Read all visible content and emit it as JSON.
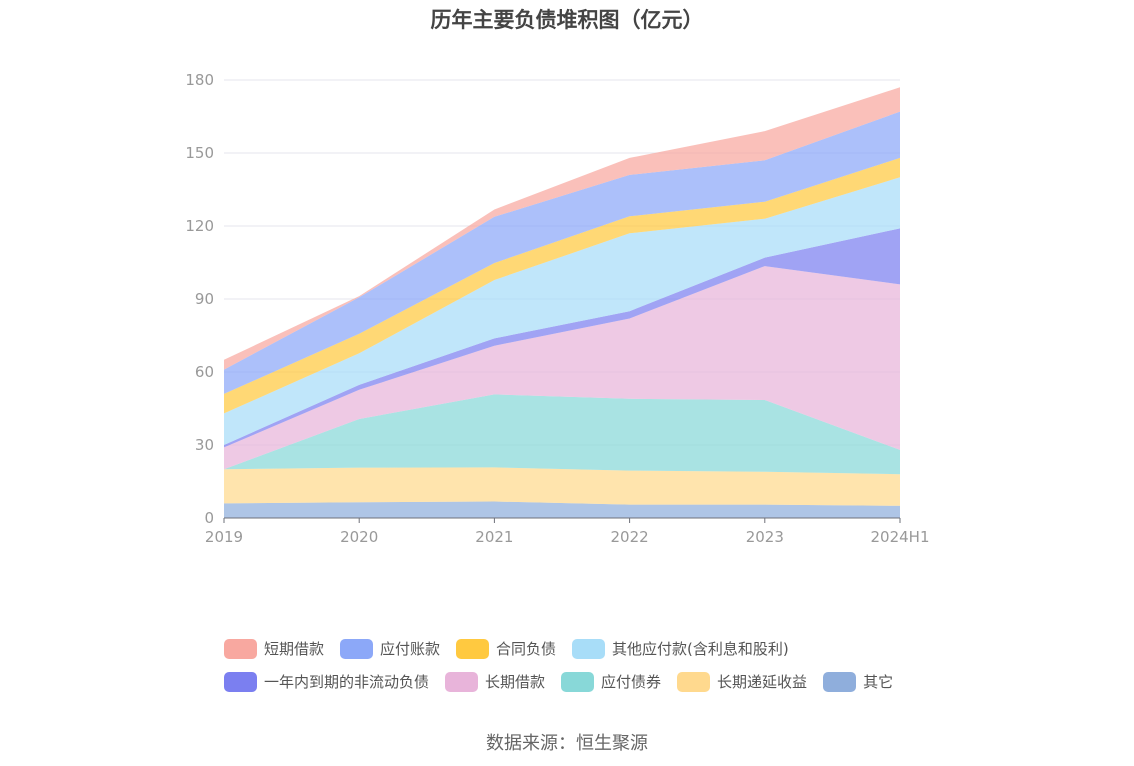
{
  "chart_data": {
    "type": "area",
    "stacked": true,
    "title": "历年主要负债堆积图（亿元）",
    "categories": [
      "2019",
      "2020",
      "2021",
      "2022",
      "2023",
      "2024H1"
    ],
    "yticks": [
      "0",
      "30",
      "60",
      "90",
      "120",
      "150",
      "180"
    ],
    "ylim": [
      0,
      180
    ],
    "grid": true,
    "legend_position": "bottom",
    "series": [
      {
        "name": "其它",
        "color": "#8FAEDC",
        "values": [
          6,
          6.5,
          6.8,
          5.5,
          5.5,
          5
        ]
      },
      {
        "name": "长期递延收益",
        "color": "#FFD98E",
        "values": [
          14,
          14.2,
          14,
          14,
          13.5,
          13
        ]
      },
      {
        "name": "应付债券",
        "color": "#88D8D8",
        "values": [
          0,
          20,
          30,
          29.5,
          29.5,
          10
        ]
      },
      {
        "name": "长期借款",
        "color": "#E8B4DA",
        "values": [
          9,
          12,
          20,
          33,
          55,
          68
        ]
      },
      {
        "name": "一年内到期的非流动负债",
        "color": "#7B7FF0",
        "values": [
          1,
          2,
          3,
          3,
          3.5,
          23
        ]
      },
      {
        "name": "其他应付款(含利息和股利)",
        "color": "#A8DDF8",
        "values": [
          13,
          13,
          24,
          32,
          16,
          21
        ]
      },
      {
        "name": "合同负债",
        "color": "#FFC940",
        "values": [
          8,
          8,
          7,
          7,
          7,
          8
        ]
      },
      {
        "name": "应付账款",
        "color": "#8CA8F8",
        "values": [
          10,
          15,
          19,
          17,
          17,
          19
        ]
      },
      {
        "name": "短期借款",
        "color": "#F8A8A0",
        "values": [
          4,
          0.5,
          3,
          7,
          12,
          10
        ]
      }
    ]
  },
  "legend": [
    {
      "name": "短期借款",
      "color": "#F8A8A0"
    },
    {
      "name": "应付账款",
      "color": "#8CA8F8"
    },
    {
      "name": "合同负债",
      "color": "#FFC940"
    },
    {
      "name": "其他应付款(含利息和股利)",
      "color": "#A8DDF8"
    },
    {
      "name": "一年内到期的非流动负债",
      "color": "#7B7FF0"
    },
    {
      "name": "长期借款",
      "color": "#E8B4DA"
    },
    {
      "name": "应付债券",
      "color": "#88D8D8"
    },
    {
      "name": "长期递延收益",
      "color": "#FFD98E"
    },
    {
      "name": "其它",
      "color": "#8FAEDC"
    }
  ],
  "source": "数据来源：恒生聚源"
}
